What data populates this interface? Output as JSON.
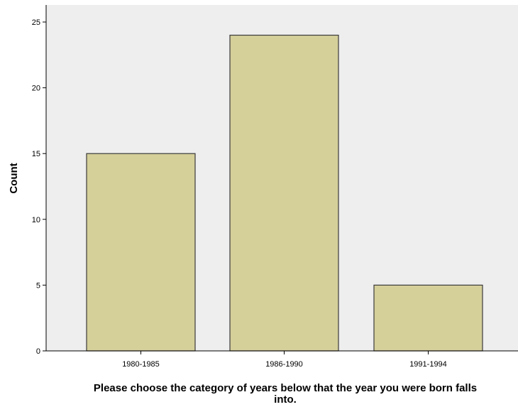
{
  "chart_data": {
    "type": "bar",
    "categories": [
      "1980-1985",
      "1986-1990",
      "1991-1994"
    ],
    "values": [
      15,
      24,
      5
    ],
    "ylabel": "Count",
    "xlabel_lines": [
      "Please choose the category of years below that the year you were born falls",
      "into."
    ],
    "ylim": [
      0,
      25.5
    ],
    "yticks": [
      0,
      5,
      10,
      15,
      20,
      25
    ],
    "grid": false,
    "colors": {
      "plot_background": "#eeeeee",
      "bar_fill": "#d5cf9a",
      "bar_stroke": "#3a3a3a",
      "axis": "#000000"
    }
  }
}
